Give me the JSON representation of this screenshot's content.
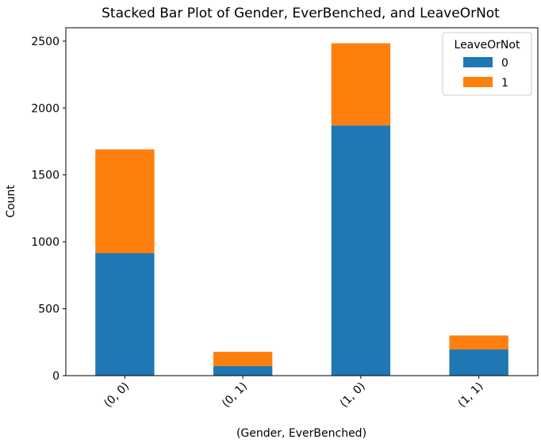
{
  "chart_data": {
    "type": "bar",
    "stacked": true,
    "title": "Stacked Bar Plot of Gender, EverBenched, and LeaveOrNot",
    "xlabel": "(Gender, EverBenched)",
    "ylabel": "Count",
    "categories": [
      "(0, 0)",
      "(0, 1)",
      "(1, 0)",
      "(1, 1)"
    ],
    "series": [
      {
        "name": "0",
        "color": "#1f77b4",
        "values": [
          915,
          72,
          1870,
          196
        ]
      },
      {
        "name": "1",
        "color": "#ff7f0e",
        "values": [
          776,
          106,
          614,
          104
        ]
      }
    ],
    "ylim": [
      0,
      2600
    ],
    "yticks": [
      0,
      500,
      1000,
      1500,
      2000,
      2500
    ],
    "legend": {
      "title": "LeaveOrNot",
      "placement": "top-right"
    },
    "grid": false
  }
}
